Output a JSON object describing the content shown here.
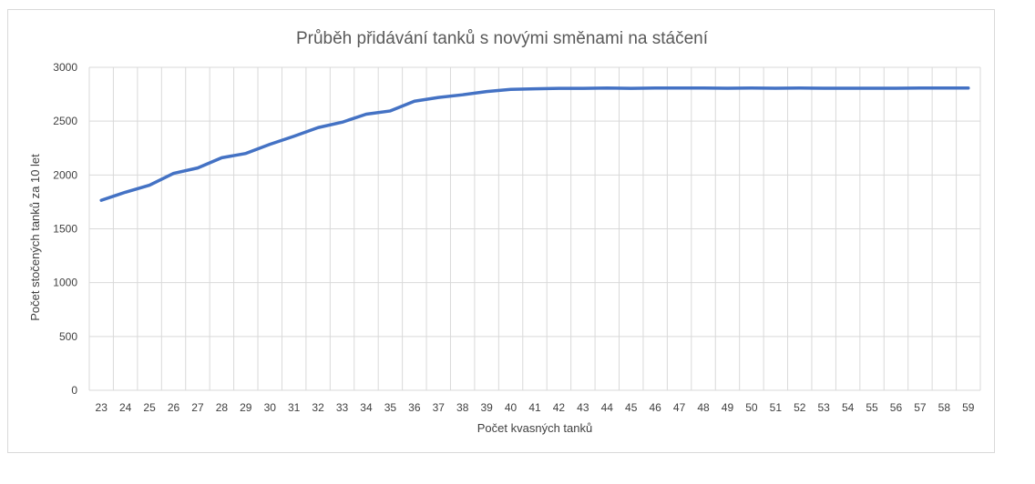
{
  "chart_data": {
    "type": "line",
    "title": "Průběh přidávání tanků s novými směnami na stáčení",
    "xlabel": "Počet kvasných tanků",
    "ylabel": "Počet stočených tanků za 10 let",
    "ylim": [
      0,
      3000
    ],
    "yticks": [
      0,
      500,
      1000,
      1500,
      2000,
      2500,
      3000
    ],
    "grid": true,
    "legend": "none",
    "categories": [
      "23",
      "24",
      "25",
      "26",
      "27",
      "28",
      "29",
      "30",
      "31",
      "32",
      "33",
      "34",
      "35",
      "36",
      "37",
      "38",
      "39",
      "40",
      "41",
      "42",
      "43",
      "44",
      "45",
      "46",
      "47",
      "48",
      "49",
      "50",
      "51",
      "52",
      "53",
      "54",
      "55",
      "56",
      "57",
      "58",
      "59"
    ],
    "series": [
      {
        "values": [
          1765,
          1840,
          1905,
          2015,
          2065,
          2160,
          2200,
          2285,
          2360,
          2440,
          2490,
          2565,
          2595,
          2685,
          2720,
          2745,
          2775,
          2795,
          2800,
          2805,
          2805,
          2808,
          2805,
          2808,
          2808,
          2808,
          2806,
          2808,
          2806,
          2808,
          2806,
          2806,
          2806,
          2806,
          2808,
          2808,
          2808
        ],
        "color": "#4472c4"
      }
    ]
  }
}
